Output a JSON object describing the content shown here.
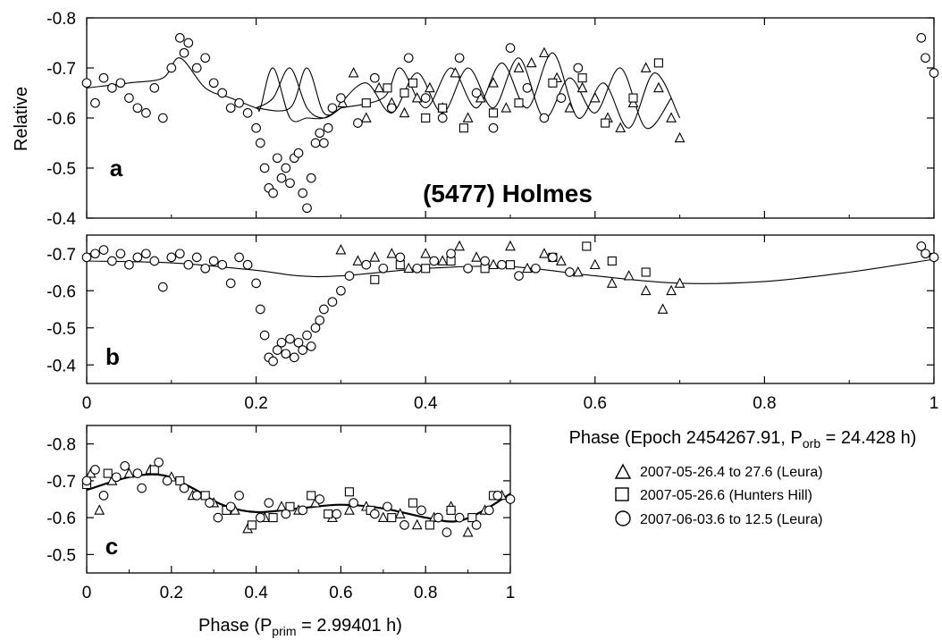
{
  "figure": {
    "title": "(5477) Holmes",
    "y_label": "Relative",
    "x_label_top": {
      "prefix": "Phase (Epoch 2454267.91, P",
      "sub": "orb",
      "suffix": " = 24.428 h)"
    },
    "x_label_bottom": {
      "prefix": "Phase (P",
      "sub": "prim",
      "suffix": " = 2.99401 h)"
    },
    "legend": [
      {
        "marker": "triangle",
        "label": "2007-05-26.4 to 27.6 (Leura)"
      },
      {
        "marker": "square",
        "label": "2007-05-26.6 (Hunters Hill)"
      },
      {
        "marker": "circle",
        "label": "2007-06-03.6 to 12.5 (Leura)"
      }
    ]
  },
  "chart_data": [
    {
      "panel": "a",
      "type": "scatter",
      "xlim": [
        0,
        1
      ],
      "ylim": [
        -0.4,
        -0.8
      ],
      "y_ticks": [
        "-0.8",
        "-0.7",
        "-0.6",
        "-0.5",
        "-0.4"
      ],
      "series": [
        {
          "name": "2007-05-26.4 to 27.6 (Leura)",
          "marker": "triangle",
          "x": [
            0.302,
            0.315,
            0.33,
            0.345,
            0.36,
            0.375,
            0.39,
            0.405,
            0.42,
            0.435,
            0.45,
            0.465,
            0.48,
            0.495,
            0.51,
            0.525,
            0.54,
            0.555,
            0.57,
            0.585,
            0.6,
            0.615,
            0.63,
            0.645,
            0.66,
            0.675,
            0.69,
            0.7
          ],
          "y": [
            -0.63,
            -0.69,
            -0.6,
            -0.66,
            -0.63,
            -0.61,
            -0.64,
            -0.66,
            -0.62,
            -0.69,
            -0.6,
            -0.64,
            -0.67,
            -0.62,
            -0.7,
            -0.71,
            -0.73,
            -0.68,
            -0.62,
            -0.66,
            -0.64,
            -0.6,
            -0.58,
            -0.63,
            -0.7,
            -0.66,
            -0.6,
            -0.56
          ]
        },
        {
          "name": "2007-05-26.6 (Hunters Hill)",
          "marker": "square",
          "x": [
            0.33,
            0.355,
            0.375,
            0.385,
            0.4,
            0.42,
            0.445,
            0.48,
            0.51,
            0.55,
            0.585,
            0.612,
            0.645,
            0.675
          ],
          "y": [
            -0.63,
            -0.66,
            -0.65,
            -0.67,
            -0.6,
            -0.62,
            -0.58,
            -0.61,
            -0.63,
            -0.67,
            -0.68,
            -0.59,
            -0.64,
            -0.71
          ]
        },
        {
          "name": "2007-06-03.6 to 12.5 (Leura)",
          "marker": "circle",
          "x": [
            0.0,
            0.01,
            0.02,
            0.03,
            0.04,
            0.05,
            0.06,
            0.07,
            0.08,
            0.09,
            0.1,
            0.11,
            0.115,
            0.12,
            0.13,
            0.14,
            0.15,
            0.16,
            0.17,
            0.18,
            0.19,
            0.2,
            0.205,
            0.21,
            0.215,
            0.22,
            0.225,
            0.23,
            0.235,
            0.24,
            0.245,
            0.25,
            0.255,
            0.26,
            0.265,
            0.27,
            0.275,
            0.28,
            0.285,
            0.29,
            0.3,
            0.32,
            0.34,
            0.36,
            0.38,
            0.4,
            0.42,
            0.44,
            0.46,
            0.48,
            0.5,
            0.52,
            0.54,
            0.56,
            0.58,
            0.985,
            0.99,
            1.0
          ],
          "y": [
            -0.67,
            -0.63,
            -0.68,
            -0.66,
            -0.67,
            -0.64,
            -0.62,
            -0.61,
            -0.66,
            -0.6,
            -0.7,
            -0.76,
            -0.73,
            -0.75,
            -0.7,
            -0.72,
            -0.67,
            -0.65,
            -0.62,
            -0.63,
            -0.61,
            -0.58,
            -0.55,
            -0.5,
            -0.46,
            -0.45,
            -0.52,
            -0.48,
            -0.5,
            -0.47,
            -0.52,
            -0.53,
            -0.45,
            -0.42,
            -0.48,
            -0.55,
            -0.57,
            -0.55,
            -0.58,
            -0.62,
            -0.64,
            -0.59,
            -0.68,
            -0.62,
            -0.72,
            -0.64,
            -0.6,
            -0.72,
            -0.65,
            -0.58,
            -0.74,
            -0.66,
            -0.6,
            -0.64,
            -0.7,
            -0.76,
            -0.72,
            -0.69
          ]
        }
      ],
      "model_curves": [
        {
          "x": [
            0.0,
            0.05,
            0.09,
            0.11,
            0.14,
            0.17,
            0.2,
            0.205,
            0.22,
            0.24,
            0.26,
            0.28,
            0.3
          ],
          "y": [
            -0.66,
            -0.67,
            -0.68,
            -0.72,
            -0.66,
            -0.64,
            -0.62,
            -0.62,
            -0.7,
            -0.6,
            -0.6,
            -0.6,
            -0.62
          ]
        },
        {
          "x": [
            0.2,
            0.22,
            0.24,
            0.26,
            0.28,
            0.3
          ],
          "y": [
            -0.62,
            -0.64,
            -0.7,
            -0.62,
            -0.6,
            -0.62
          ]
        },
        {
          "x": [
            0.2,
            0.24,
            0.26,
            0.28,
            0.3
          ],
          "y": [
            -0.62,
            -0.62,
            -0.7,
            -0.61,
            -0.62
          ]
        },
        {
          "x": [
            0.3,
            0.35,
            0.37,
            0.4,
            0.43,
            0.46,
            0.49,
            0.52,
            0.55,
            0.58,
            0.61,
            0.64,
            0.67,
            0.7
          ],
          "y": [
            -0.62,
            -0.64,
            -0.7,
            -0.62,
            -0.7,
            -0.62,
            -0.71,
            -0.62,
            -0.73,
            -0.6,
            -0.67,
            -0.58,
            -0.69,
            -0.6
          ]
        },
        {
          "x": [
            0.3,
            0.33,
            0.36,
            0.39,
            0.42,
            0.45,
            0.48,
            0.51,
            0.54,
            0.57,
            0.6,
            0.63,
            0.66,
            0.69
          ],
          "y": [
            -0.63,
            -0.67,
            -0.61,
            -0.69,
            -0.61,
            -0.7,
            -0.62,
            -0.72,
            -0.6,
            -0.68,
            -0.61,
            -0.7,
            -0.58,
            -0.64
          ]
        }
      ]
    },
    {
      "panel": "b",
      "type": "scatter",
      "xlim": [
        0,
        1
      ],
      "ylim": [
        -0.35,
        -0.75
      ],
      "x_ticks": [
        "0",
        "0.2",
        "0.4",
        "0.6",
        "0.8",
        "1"
      ],
      "y_ticks": [
        "-0.7",
        "-0.6",
        "-0.5",
        "-0.4"
      ],
      "series": [
        {
          "name": "2007-05-26.4 to 27.6 (Leura)",
          "marker": "triangle",
          "x": [
            0.3,
            0.32,
            0.34,
            0.36,
            0.38,
            0.4,
            0.42,
            0.44,
            0.46,
            0.48,
            0.5,
            0.52,
            0.54,
            0.56,
            0.58,
            0.6,
            0.62,
            0.64,
            0.66,
            0.68,
            0.69,
            0.7
          ],
          "y": [
            -0.71,
            -0.68,
            -0.69,
            -0.7,
            -0.66,
            -0.7,
            -0.68,
            -0.72,
            -0.69,
            -0.67,
            -0.72,
            -0.66,
            -0.7,
            -0.68,
            -0.65,
            -0.67,
            -0.62,
            -0.64,
            -0.6,
            -0.55,
            -0.6,
            -0.62
          ]
        },
        {
          "name": "2007-05-26.6 (Hunters Hill)",
          "marker": "square",
          "x": [
            0.34,
            0.37,
            0.4,
            0.43,
            0.47,
            0.5,
            0.55,
            0.59,
            0.62,
            0.66
          ],
          "y": [
            -0.63,
            -0.67,
            -0.66,
            -0.68,
            -0.66,
            -0.67,
            -0.69,
            -0.72,
            -0.68,
            -0.65
          ]
        },
        {
          "name": "2007-06-03.6 to 12.5 (Leura)",
          "marker": "circle",
          "x": [
            0.0,
            0.01,
            0.02,
            0.03,
            0.04,
            0.05,
            0.06,
            0.07,
            0.08,
            0.09,
            0.1,
            0.11,
            0.12,
            0.13,
            0.14,
            0.15,
            0.16,
            0.17,
            0.18,
            0.19,
            0.2,
            0.205,
            0.21,
            0.215,
            0.22,
            0.225,
            0.23,
            0.235,
            0.24,
            0.245,
            0.25,
            0.255,
            0.26,
            0.265,
            0.27,
            0.275,
            0.28,
            0.29,
            0.3,
            0.31,
            0.33,
            0.35,
            0.37,
            0.39,
            0.41,
            0.43,
            0.45,
            0.47,
            0.49,
            0.51,
            0.53,
            0.55,
            0.57,
            0.985,
            0.99,
            1.0
          ],
          "y": [
            -0.69,
            -0.7,
            -0.71,
            -0.68,
            -0.7,
            -0.67,
            -0.69,
            -0.7,
            -0.68,
            -0.61,
            -0.69,
            -0.7,
            -0.67,
            -0.69,
            -0.66,
            -0.68,
            -0.67,
            -0.62,
            -0.69,
            -0.67,
            -0.62,
            -0.55,
            -0.48,
            -0.42,
            -0.41,
            -0.44,
            -0.46,
            -0.43,
            -0.47,
            -0.42,
            -0.46,
            -0.44,
            -0.48,
            -0.45,
            -0.5,
            -0.52,
            -0.55,
            -0.57,
            -0.6,
            -0.64,
            -0.67,
            -0.66,
            -0.69,
            -0.66,
            -0.68,
            -0.7,
            -0.66,
            -0.68,
            -0.67,
            -0.64,
            -0.66,
            -0.69,
            -0.65,
            -0.72,
            -0.7,
            -0.69
          ]
        }
      ],
      "model_curve": {
        "x": [
          0.0,
          0.1,
          0.2,
          0.25,
          0.3,
          0.4,
          0.5,
          0.6,
          0.7,
          0.8,
          0.9,
          1.0
        ],
        "y": [
          -0.68,
          -0.675,
          -0.655,
          -0.64,
          -0.64,
          -0.66,
          -0.665,
          -0.64,
          -0.62,
          -0.625,
          -0.65,
          -0.685
        ]
      }
    },
    {
      "panel": "c",
      "type": "scatter",
      "xlim": [
        0,
        1
      ],
      "ylim": [
        -0.45,
        -0.85
      ],
      "x_ticks": [
        "0",
        "0.2",
        "0.4",
        "0.6",
        "0.8",
        "1"
      ],
      "y_ticks": [
        "-0.8",
        "-0.7",
        "-0.6",
        "-0.5"
      ],
      "series": [
        {
          "name": "2007-05-26.4 to 27.6 (Leura)",
          "marker": "triangle",
          "x": [
            0.01,
            0.03,
            0.06,
            0.1,
            0.15,
            0.2,
            0.25,
            0.3,
            0.35,
            0.38,
            0.42,
            0.46,
            0.5,
            0.54,
            0.58,
            0.62,
            0.66,
            0.7,
            0.74,
            0.78,
            0.82,
            0.86,
            0.9,
            0.94,
            0.98
          ],
          "y": [
            -0.72,
            -0.62,
            -0.7,
            -0.72,
            -0.73,
            -0.71,
            -0.66,
            -0.64,
            -0.62,
            -0.57,
            -0.6,
            -0.63,
            -0.62,
            -0.64,
            -0.6,
            -0.62,
            -0.63,
            -0.6,
            -0.61,
            -0.58,
            -0.6,
            -0.63,
            -0.56,
            -0.62,
            -0.66
          ]
        },
        {
          "name": "2007-05-26.6 (Hunters Hill)",
          "marker": "square",
          "x": [
            0.0,
            0.05,
            0.16,
            0.22,
            0.28,
            0.33,
            0.39,
            0.44,
            0.48,
            0.53,
            0.57,
            0.62,
            0.67,
            0.72,
            0.77,
            0.81,
            0.86,
            0.91,
            0.96
          ],
          "y": [
            -0.69,
            -0.72,
            -0.73,
            -0.7,
            -0.66,
            -0.62,
            -0.58,
            -0.6,
            -0.63,
            -0.66,
            -0.61,
            -0.67,
            -0.62,
            -0.6,
            -0.64,
            -0.58,
            -0.62,
            -0.6,
            -0.66
          ]
        },
        {
          "name": "2007-06-03.6 to 12.5 (Leura)",
          "marker": "circle",
          "x": [
            0.0,
            0.02,
            0.04,
            0.07,
            0.09,
            0.12,
            0.13,
            0.17,
            0.19,
            0.23,
            0.26,
            0.29,
            0.31,
            0.34,
            0.36,
            0.41,
            0.43,
            0.47,
            0.51,
            0.55,
            0.59,
            0.63,
            0.68,
            0.71,
            0.75,
            0.79,
            0.83,
            0.85,
            0.88,
            0.92,
            0.95,
            0.97,
            1.0
          ],
          "y": [
            -0.7,
            -0.73,
            -0.66,
            -0.71,
            -0.74,
            -0.72,
            -0.68,
            -0.75,
            -0.7,
            -0.68,
            -0.66,
            -0.64,
            -0.6,
            -0.63,
            -0.66,
            -0.6,
            -0.64,
            -0.61,
            -0.62,
            -0.65,
            -0.61,
            -0.64,
            -0.61,
            -0.63,
            -0.58,
            -0.62,
            -0.6,
            -0.56,
            -0.6,
            -0.58,
            -0.62,
            -0.66,
            -0.65
          ]
        }
      ],
      "model_curve": {
        "x": [
          0.0,
          0.1,
          0.18,
          0.25,
          0.32,
          0.4,
          0.5,
          0.6,
          0.7,
          0.8,
          0.87,
          0.93,
          1.0
        ],
        "y": [
          -0.675,
          -0.71,
          -0.715,
          -0.68,
          -0.635,
          -0.615,
          -0.625,
          -0.635,
          -0.625,
          -0.6,
          -0.59,
          -0.615,
          -0.665
        ]
      }
    }
  ]
}
